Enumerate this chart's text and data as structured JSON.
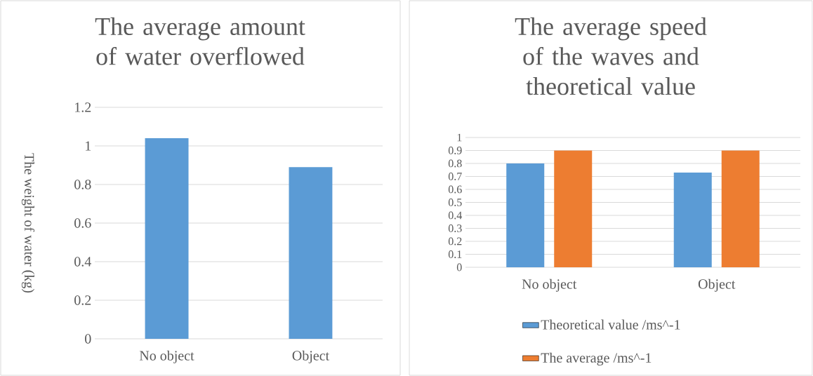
{
  "chart_data": [
    {
      "type": "bar",
      "title": "The average amount of water overflowed",
      "ylabel": "The weight of water (kg)",
      "categories": [
        "No object",
        "Object"
      ],
      "values": [
        1.04,
        0.89
      ],
      "color": "#5b9bd5",
      "ylim": [
        0,
        1.2
      ],
      "yticks": [
        0,
        0.2,
        0.4,
        0.6,
        0.8,
        1,
        1.2
      ],
      "grid": "y"
    },
    {
      "type": "bar",
      "title": "The average speed of the waves and theoretical value",
      "categories": [
        "No object",
        "Object"
      ],
      "series": [
        {
          "name": "Theoretical value /ms^-1",
          "color": "#5b9bd5",
          "values": [
            0.8,
            0.73
          ]
        },
        {
          "name": "The average /ms^-1",
          "color": "#ed7d31",
          "values": [
            0.9,
            0.9
          ]
        }
      ],
      "ylim": [
        0,
        1
      ],
      "yticks": [
        0,
        0.1,
        0.2,
        0.3,
        0.4,
        0.5,
        0.6,
        0.7,
        0.8,
        0.9,
        1
      ],
      "grid": "y",
      "legend": "bottom"
    }
  ]
}
